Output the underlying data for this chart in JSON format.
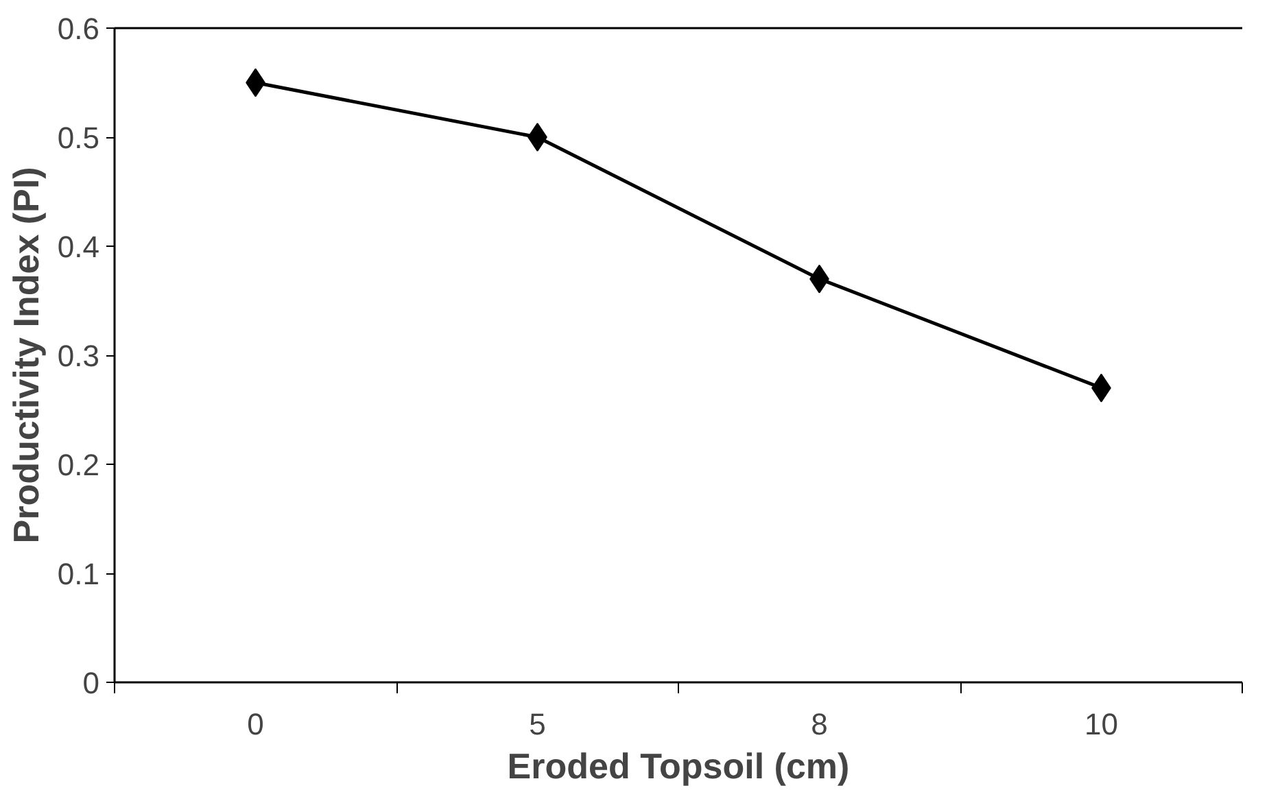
{
  "chart_data": {
    "type": "line",
    "xlabel": "Eroded Topsoil (cm)",
    "ylabel": "Productivity Index (PI)",
    "categories": [
      "0",
      "5",
      "8",
      "10"
    ],
    "series": [
      {
        "color": "#000000",
        "values": [
          0.55,
          0.5,
          0.37,
          0.27
        ]
      }
    ],
    "ylim": [
      0,
      0.6
    ],
    "yticks": [
      0,
      0.1,
      0.2,
      0.3,
      0.4,
      0.5,
      0.6
    ],
    "marker": "diamond",
    "line_style": "solid",
    "grid": false
  }
}
